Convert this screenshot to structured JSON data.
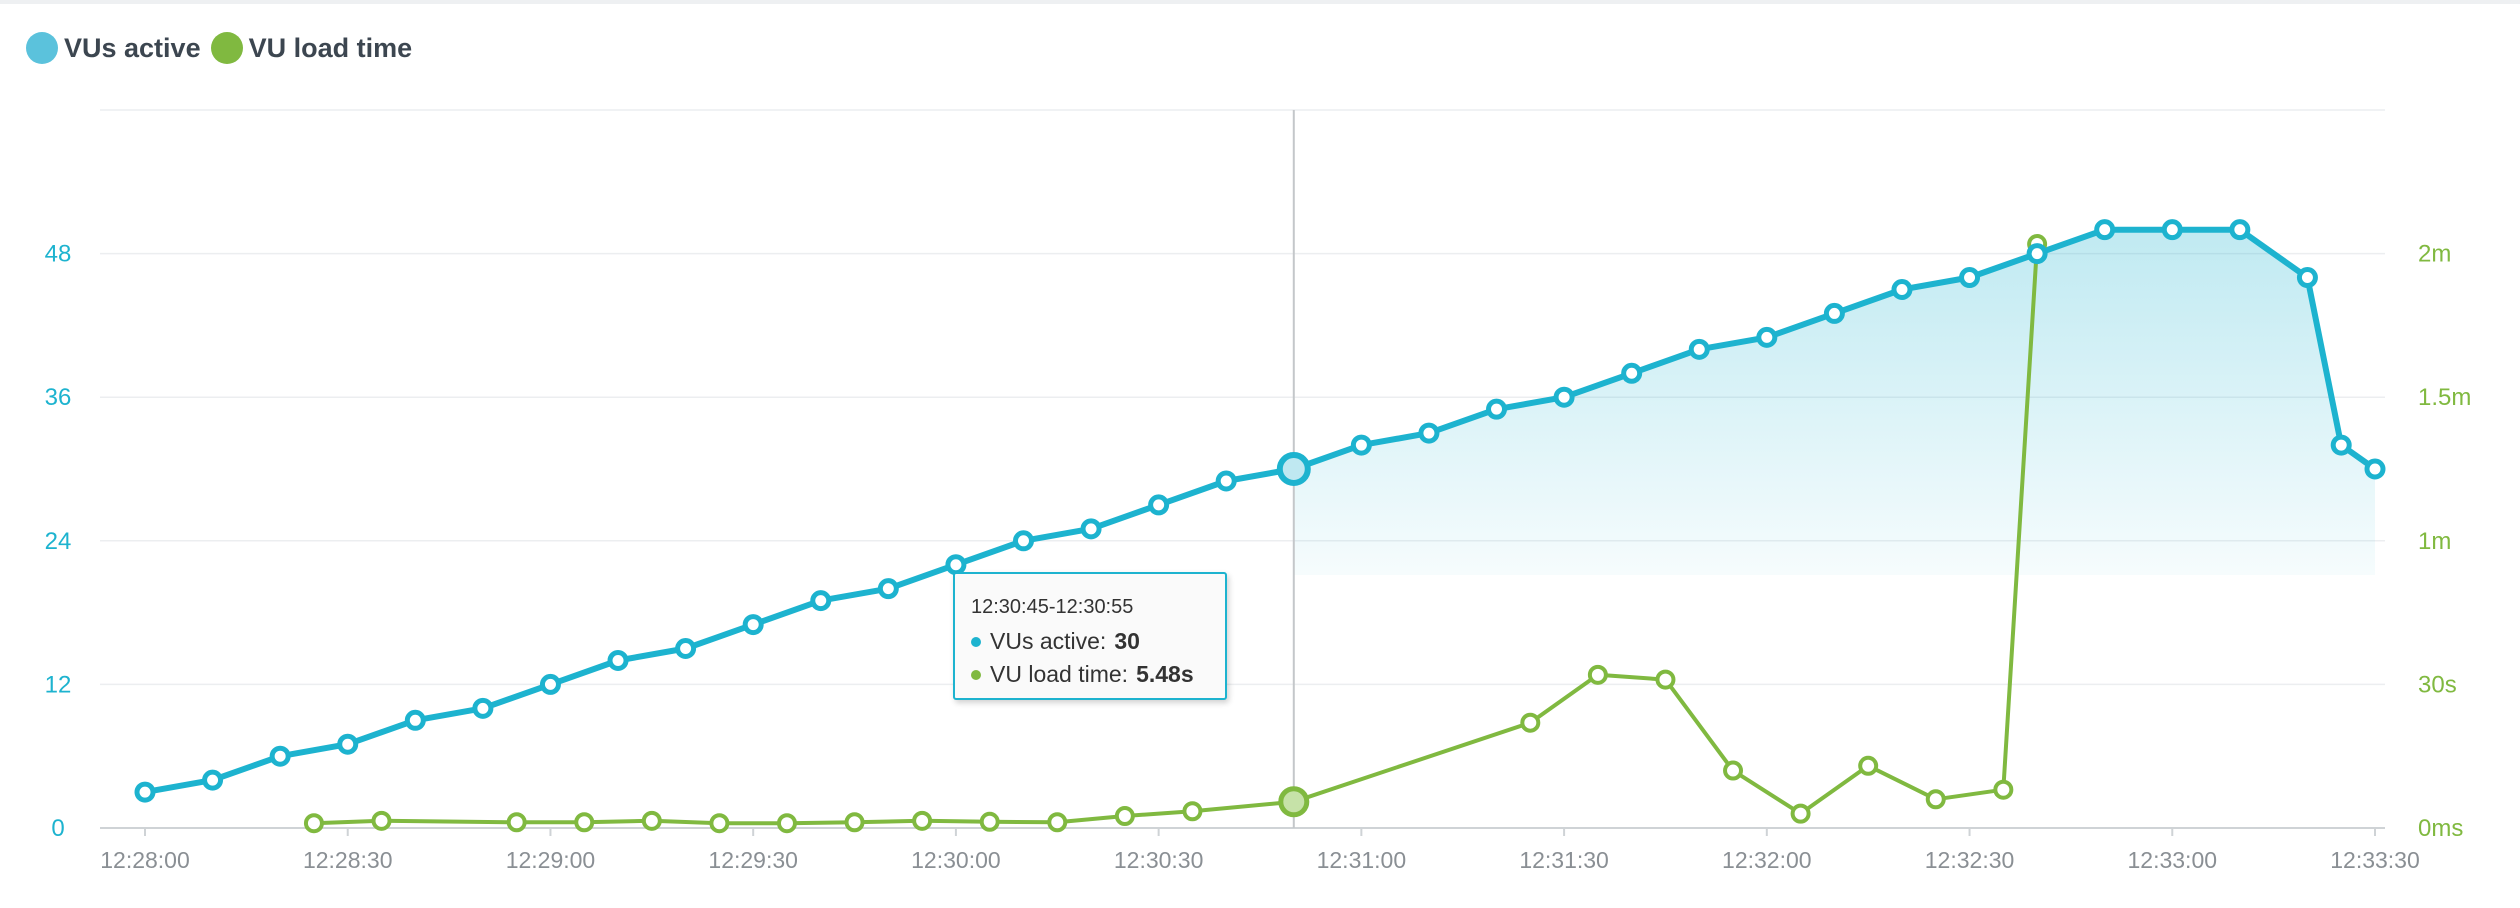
{
  "legend": {
    "series1": "VUs active",
    "series2": "VU load time"
  },
  "colors": {
    "vus": "#1db3cf",
    "load": "#80b940",
    "grid": "#eceef0",
    "axis_text_x": "#8a8f94"
  },
  "tooltip": {
    "time": "12:30:45-12:30:55",
    "row1_label": "VUs active:",
    "row1_value": "30",
    "row2_label": "VU load time:",
    "row2_value": "5.48s"
  },
  "chart_data": {
    "type": "line",
    "x_ticks": [
      "12:28:00",
      "12:28:30",
      "12:29:00",
      "12:29:30",
      "12:30:00",
      "12:30:30",
      "12:31:00",
      "12:31:30",
      "12:32:00",
      "12:32:30",
      "12:33:00",
      "12:33:30"
    ],
    "y_left_ticks": [
      "0",
      "12",
      "24",
      "36",
      "48"
    ],
    "y_left_range": [
      0,
      60
    ],
    "y_right_ticks": [
      "0ms",
      "30s",
      "1m",
      "1.5m",
      "2m"
    ],
    "y_right_range_seconds": [
      0,
      150
    ],
    "highlight_time": "12:30:50",
    "series": [
      {
        "name": "VUs active",
        "axis": "left",
        "area": true,
        "x": [
          "12:28:00",
          "12:28:10",
          "12:28:20",
          "12:28:30",
          "12:28:40",
          "12:28:50",
          "12:29:00",
          "12:29:10",
          "12:29:20",
          "12:29:30",
          "12:29:40",
          "12:29:50",
          "12:30:00",
          "12:30:10",
          "12:30:20",
          "12:30:30",
          "12:30:40",
          "12:30:50",
          "12:31:00",
          "12:31:10",
          "12:31:20",
          "12:31:30",
          "12:31:40",
          "12:31:50",
          "12:32:00",
          "12:32:10",
          "12:32:20",
          "12:32:30",
          "12:32:40",
          "12:32:50",
          "12:33:00",
          "12:33:10",
          "12:33:20",
          "12:33:25",
          "12:33:30"
        ],
        "values": [
          3,
          4,
          6,
          7,
          9,
          10,
          12,
          14,
          15,
          17,
          19,
          20,
          22,
          24,
          25,
          27,
          29,
          30,
          32,
          33,
          35,
          36,
          38,
          40,
          41,
          43,
          45,
          46,
          48,
          50,
          50,
          50,
          46,
          32,
          30
        ]
      },
      {
        "name": "VU load time",
        "axis": "right",
        "unit": "seconds",
        "x": [
          "12:28:25",
          "12:28:35",
          "12:28:55",
          "12:29:05",
          "12:29:15",
          "12:29:25",
          "12:29:35",
          "12:29:45",
          "12:29:55",
          "12:30:05",
          "12:30:15",
          "12:30:25",
          "12:30:35",
          "12:30:50",
          "12:31:25",
          "12:31:35",
          "12:31:45",
          "12:31:55",
          "12:32:05",
          "12:32:15",
          "12:32:25",
          "12:32:35",
          "12:32:40"
        ],
        "values": [
          1,
          1.5,
          1.2,
          1.2,
          1.5,
          1.0,
          1.0,
          1.2,
          1.5,
          1.3,
          1.2,
          2.5,
          3.5,
          5.48,
          22,
          32,
          31,
          12,
          3,
          13,
          6,
          8,
          122
        ]
      }
    ]
  }
}
